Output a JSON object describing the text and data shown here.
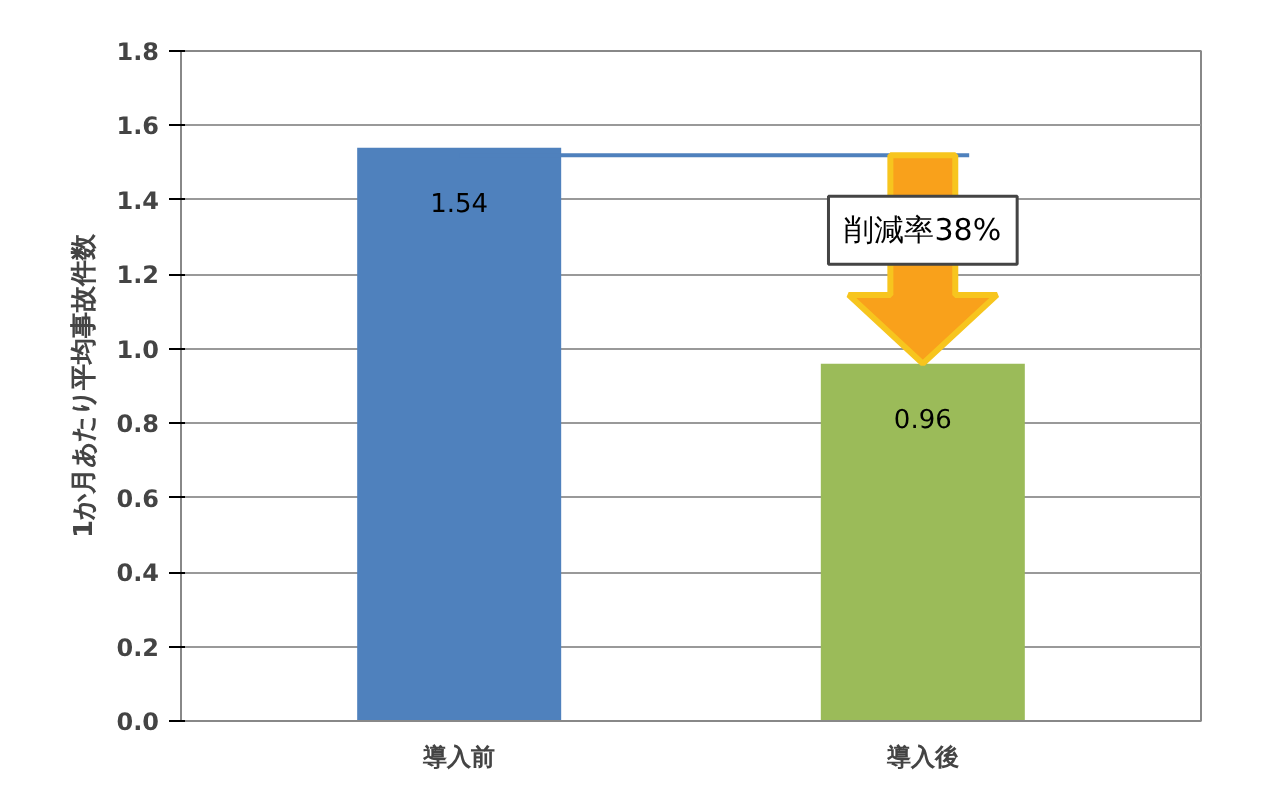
{
  "chart_data": {
    "type": "bar",
    "ylabel": "1か月あたり平均事故件数",
    "categories": [
      "導入前",
      "導入後"
    ],
    "values": [
      1.54,
      0.96
    ],
    "colors": [
      "#4f81bd",
      "#9bbb59"
    ],
    "ylim": [
      0,
      1.8
    ],
    "yticks": [
      {
        "value": 0,
        "label": "0.0"
      },
      {
        "value": 0.2,
        "label": "0.2"
      },
      {
        "value": 0.4,
        "label": "0.4"
      },
      {
        "value": 0.6,
        "label": "0.6"
      },
      {
        "value": 0.8,
        "label": "0.8"
      },
      {
        "value": 1.0,
        "label": "1.0"
      },
      {
        "value": 1.2,
        "label": "1.2"
      },
      {
        "value": 1.4,
        "label": "1.4"
      },
      {
        "value": 1.6,
        "label": "1.6"
      },
      {
        "value": 1.8,
        "label": "1.8"
      }
    ],
    "grid": "y",
    "data_labels": true,
    "ref_lines": [
      {
        "axis": "y",
        "value": 1.52,
        "color": "#4f81bd"
      }
    ],
    "annotations": [
      "削減率38%"
    ]
  }
}
